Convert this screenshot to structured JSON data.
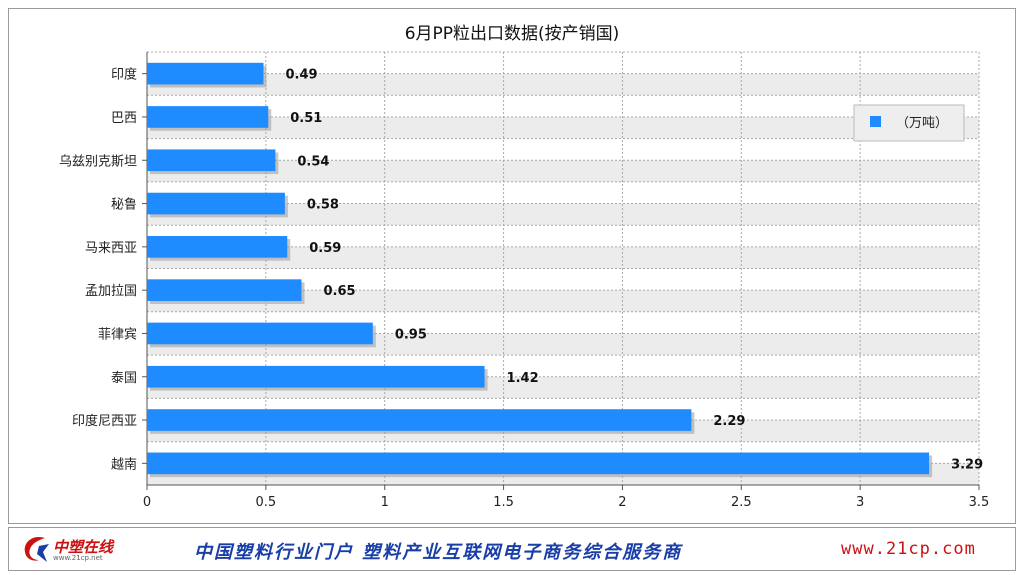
{
  "chart_data": {
    "type": "bar",
    "orientation": "horizontal",
    "title": "6月PP粒出口数据(按产销国)",
    "categories": [
      "印度",
      "巴西",
      "乌兹别克斯坦",
      "秘鲁",
      "马来西亚",
      "孟加拉国",
      "菲律宾",
      "泰国",
      "印度尼西亚",
      "越南"
    ],
    "series": [
      {
        "name": "（万吨）",
        "values": [
          0.49,
          0.51,
          0.54,
          0.58,
          0.59,
          0.65,
          0.95,
          1.42,
          2.29,
          3.29
        ]
      }
    ],
    "value_labels": [
      "0.49",
      "0.51",
      "0.54",
      "0.58",
      "0.59",
      "0.65",
      "0.95",
      "1.42",
      "2.29",
      "3.29"
    ],
    "xlim": [
      0,
      3.5
    ],
    "x_ticks": [
      "0",
      "0.5",
      "1",
      "1.5",
      "2",
      "2.5",
      "3",
      "3.5"
    ],
    "grid": true,
    "legend_position": "top-right",
    "bar_color": "#1e8bff"
  },
  "footer": {
    "logo_text": "中塑在线",
    "logo_sub": "www.21cp.net",
    "slogan": "中国塑料行业门户  塑料产业互联网电子商务综合服务商",
    "url": "www.21cp.com"
  }
}
